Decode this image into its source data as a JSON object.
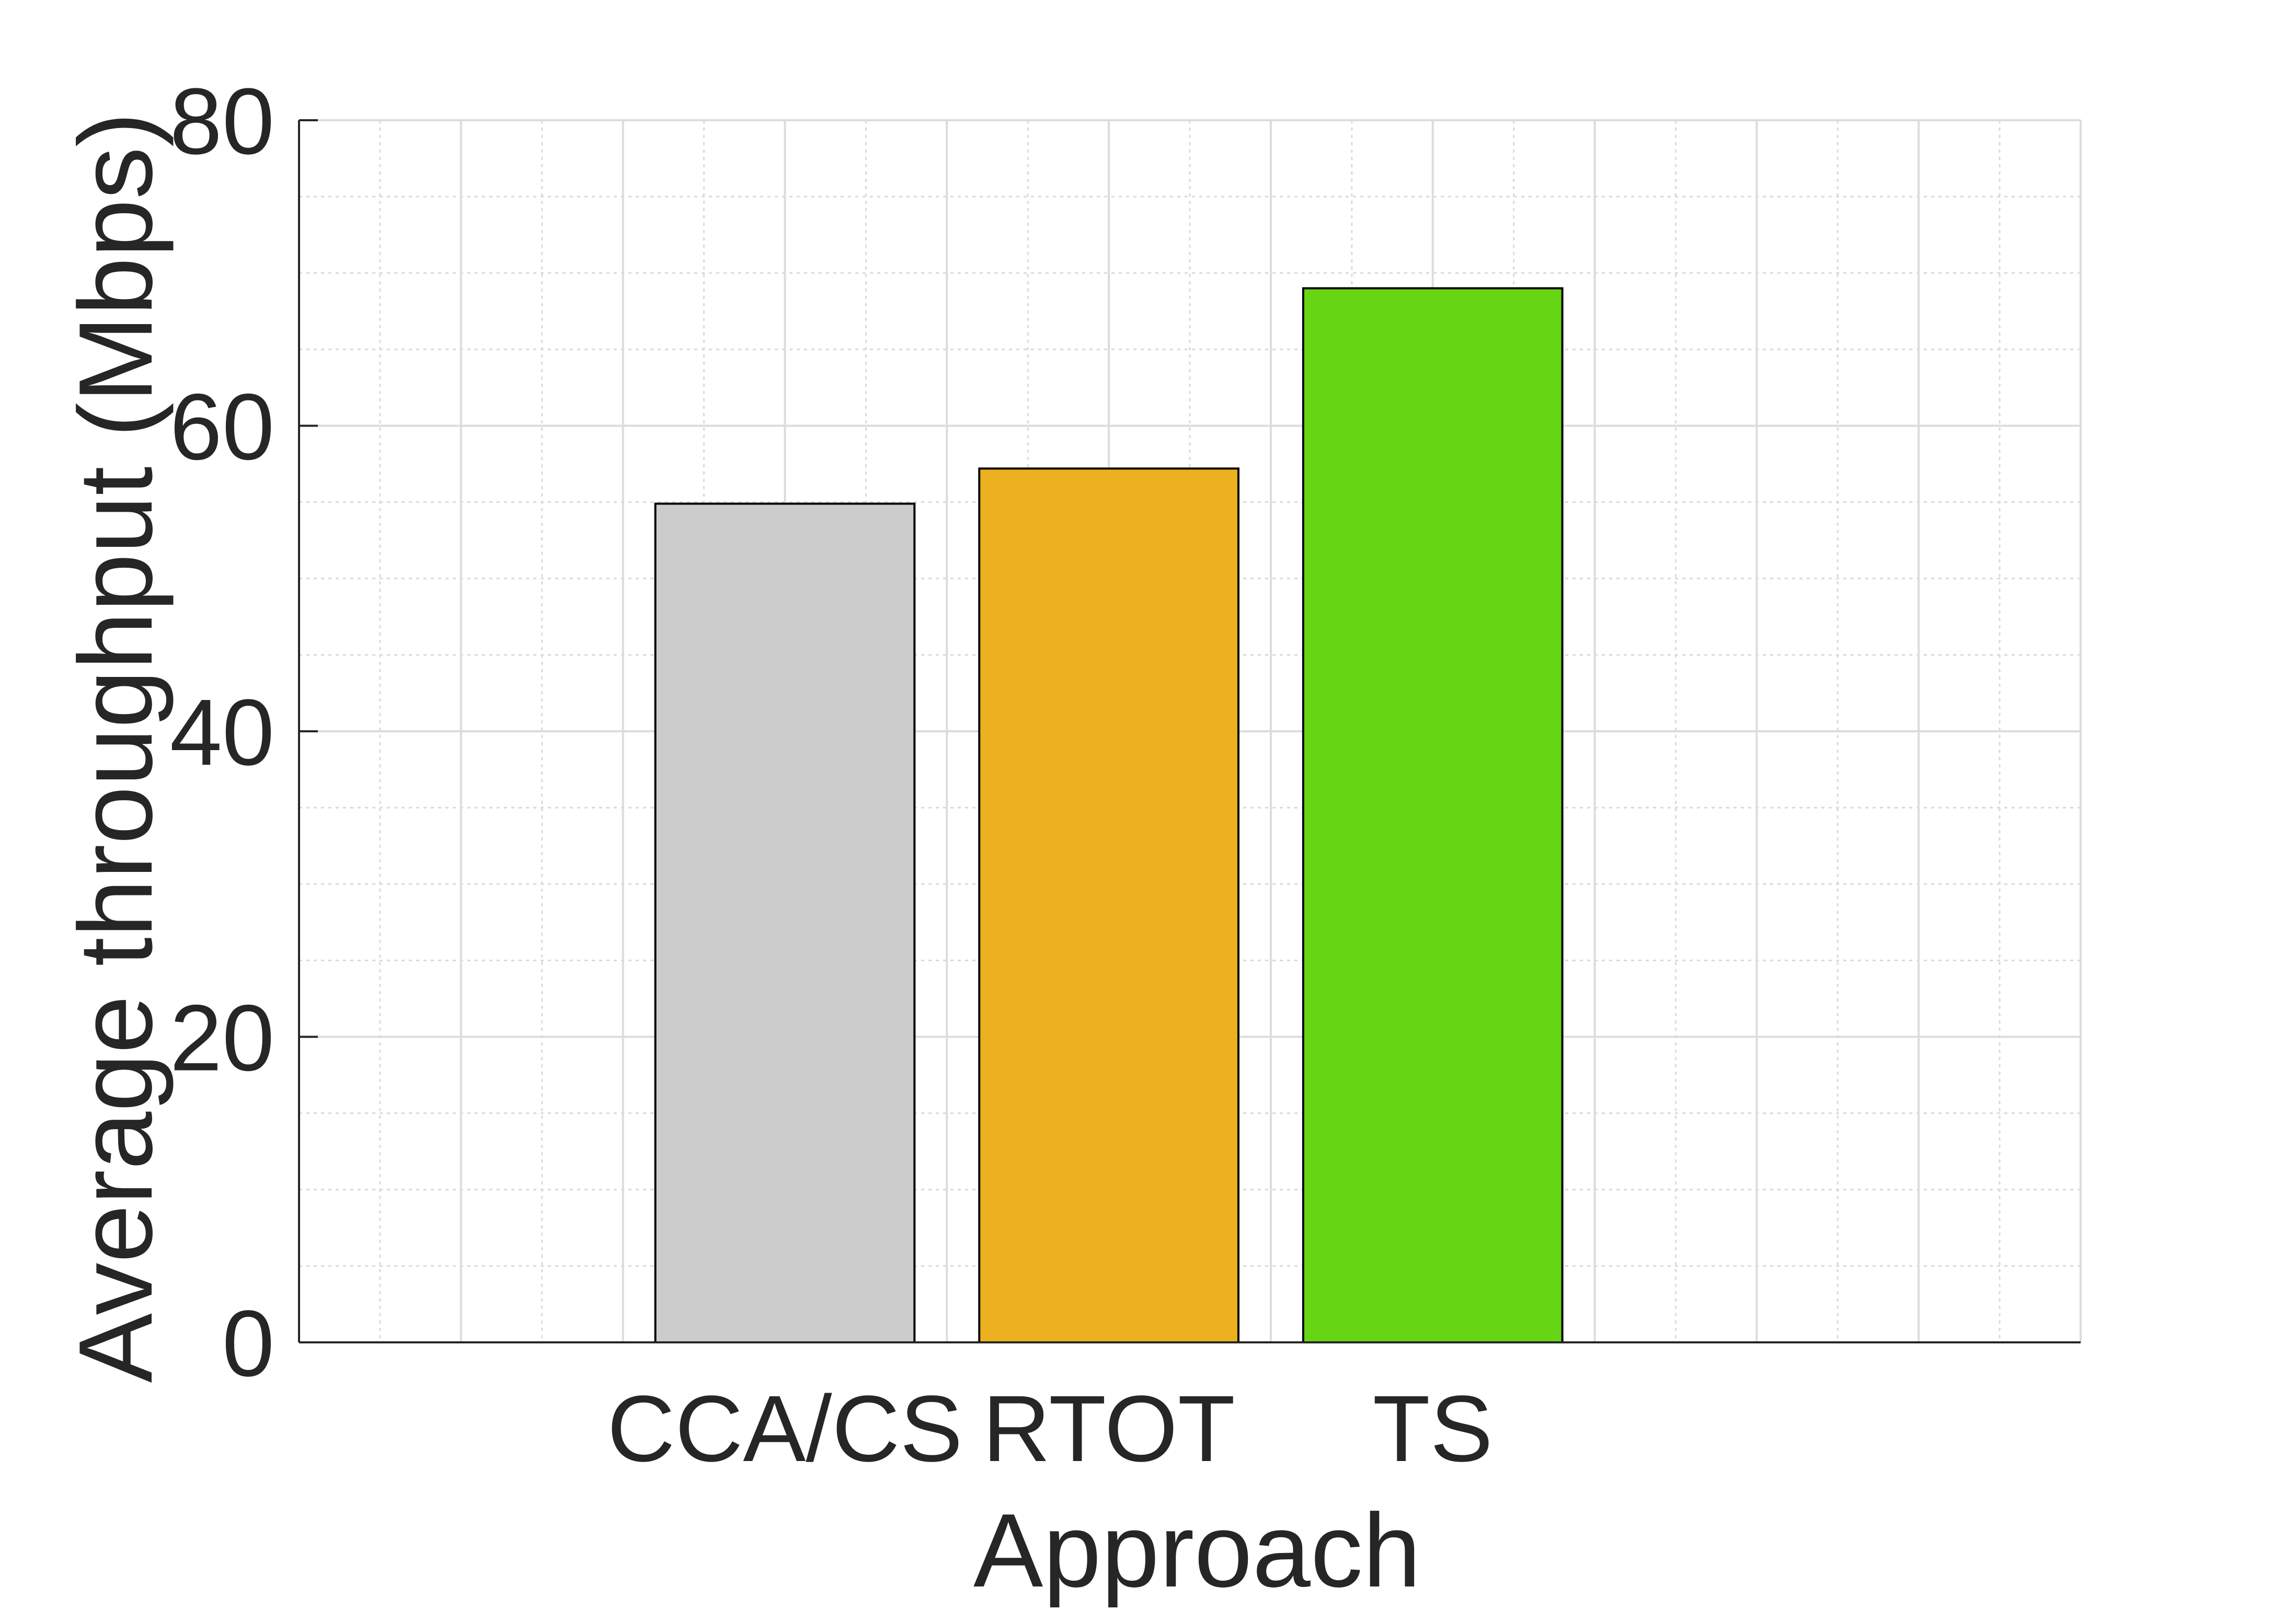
{
  "chart_data": {
    "type": "bar",
    "title": "",
    "xlabel": "Approach",
    "ylabel": "Average throughput (Mbps)",
    "categories": [
      "CCA/CS",
      "RTOT",
      "TS"
    ],
    "values": [
      54.9,
      57.2,
      69.0
    ],
    "xlim": [
      -0.5,
      5.0
    ],
    "ylim": [
      0,
      80
    ],
    "yticks": [
      0,
      20,
      40,
      60,
      80
    ],
    "grid": true,
    "minor_grid": true,
    "legend": "none",
    "colors": [
      "#cccccc",
      "#edb120",
      "#66d614"
    ],
    "edge_color": "#000000"
  }
}
